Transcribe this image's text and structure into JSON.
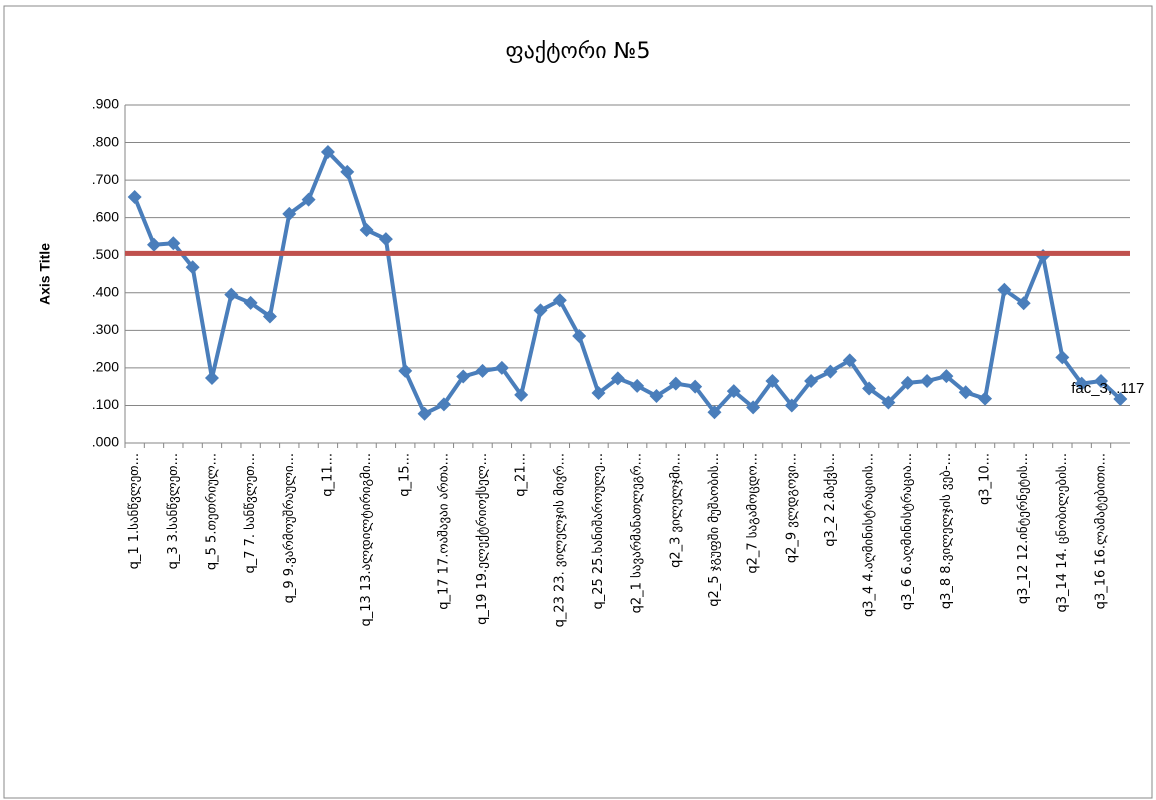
{
  "chart_data": {
    "type": "line",
    "title": "ფაქტორი №5",
    "y_axis_label": "Axis Title",
    "categories": [
      "q_1 1.სანწვლეთ...",
      null,
      "q_3 3.სანწვლეთ...",
      null,
      "q_5 5.თეთრიულ...",
      null,
      "q_7 7. სანწვლეთ...",
      null,
      "q_9 9.ვარმოუშრაული...",
      null,
      "q_11...",
      null,
      "q_13 13.ალდილტირიგმი...",
      null,
      "q_15...",
      null,
      "q_17 17.ოაშავაი ართა...",
      null,
      "q_19 19.ელექტრიოქსელ...",
      null,
      "q_21...",
      null,
      "q_23 23. ვილელჯის მივრ...",
      null,
      "q_25 25.ხანიშაროულე...",
      null,
      "q2_1 სავარმანათლეგრ...",
      null,
      "q2_3 ვილელჯმი...",
      null,
      "q2_5 ჯგუფში მუშაობის...",
      null,
      "q2_7 საგამოცდო...",
      null,
      "q2_9 ვლდგოვი...",
      null,
      "q3_2 2.მაქვს...",
      null,
      "q3_4 4.აღმინისტრაციის...",
      null,
      "q3_6 6.აღმინისტრაცია...",
      null,
      "q3_8 8.ვილელჯის ვებ-...",
      null,
      "q3_10...",
      null,
      "q3_12 12.ინტერნეტის...",
      null,
      "q3_14 14. ცნობილების...",
      null,
      "q3_16 16.ლამატებითი...",
      null
    ],
    "series": [
      {
        "name": "fac_3",
        "color": "#4a7ebb",
        "values": [
          0.655,
          0.528,
          0.532,
          0.468,
          0.173,
          0.395,
          0.373,
          0.337,
          0.61,
          0.648,
          0.775,
          0.722,
          0.567,
          0.543,
          0.192,
          0.078,
          0.103,
          0.177,
          0.192,
          0.2,
          0.128,
          0.353,
          0.38,
          0.285,
          0.133,
          0.172,
          0.152,
          0.125,
          0.158,
          0.15,
          0.082,
          0.138,
          0.095,
          0.165,
          0.1,
          0.165,
          0.19,
          0.22,
          0.145,
          0.108,
          0.16,
          0.165,
          0.178,
          0.135,
          0.118,
          0.408,
          0.372,
          0.498,
          0.228,
          0.158,
          0.165,
          0.117
        ]
      }
    ],
    "annotation": "fac_3, .117",
    "reference_line": {
      "value": 0.505,
      "color": "#c0504d"
    },
    "ylim": [
      0,
      0.9
    ],
    "yticks": [
      {
        "value": 0,
        "label": ".000"
      },
      {
        "value": 0.1,
        "label": ".100"
      },
      {
        "value": 0.2,
        "label": ".200"
      },
      {
        "value": 0.3,
        "label": ".300"
      },
      {
        "value": 0.4,
        "label": ".400"
      },
      {
        "value": 0.5,
        "label": ".500"
      },
      {
        "value": 0.6,
        "label": ".600"
      },
      {
        "value": 0.7,
        "label": ".700"
      },
      {
        "value": 0.8,
        "label": ".800"
      },
      {
        "value": 0.9,
        "label": ".900"
      }
    ],
    "grid": true
  }
}
